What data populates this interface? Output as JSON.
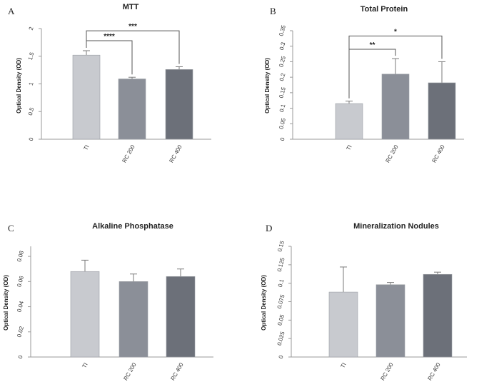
{
  "chart_data": [
    {
      "panel": "A",
      "type": "bar",
      "title": "MTT",
      "ylabel": "Optical Density (OD)",
      "xlabel": "",
      "categories": [
        "TI",
        "RC 200",
        "RC 400"
      ],
      "values": [
        1.52,
        1.09,
        1.26
      ],
      "errors": [
        0.08,
        0.03,
        0.05
      ],
      "ylim": [
        0,
        2
      ],
      "yticks": [
        0,
        0.5,
        1,
        1.5,
        2
      ],
      "ytick_labels": [
        "0",
        "0.5",
        "1",
        "1.5",
        "2"
      ],
      "colors": [
        "#c8cacf",
        "#8b8f98",
        "#6c7079"
      ],
      "significance": [
        {
          "from": 0,
          "to": 1,
          "label": "****",
          "level": 1.78
        },
        {
          "from": 0,
          "to": 2,
          "label": "***",
          "level": 1.96
        }
      ]
    },
    {
      "panel": "B",
      "type": "bar",
      "title": "Total Protein",
      "ylabel": "Optical Density (OD)",
      "xlabel": "",
      "categories": [
        "TI",
        "RC 200",
        "RC 400"
      ],
      "values": [
        0.115,
        0.21,
        0.182
      ],
      "errors": [
        0.008,
        0.05,
        0.068
      ],
      "ylim": [
        0,
        0.35
      ],
      "yticks": [
        0,
        0.05,
        0.1,
        0.15,
        0.2,
        0.25,
        0.3,
        0.35
      ],
      "ytick_labels": [
        "0",
        "0.05",
        "0.1",
        "0.15",
        "0.2",
        "0.25",
        "0.3",
        "0.35"
      ],
      "colors": [
        "#c8cacf",
        "#8b8f98",
        "#6c7079"
      ],
      "significance": [
        {
          "from": 0,
          "to": 1,
          "label": "**",
          "level": 0.29
        },
        {
          "from": 0,
          "to": 2,
          "label": "*",
          "level": 0.333
        }
      ]
    },
    {
      "panel": "C",
      "type": "bar",
      "title": "Alkaline Phosphatase",
      "ylabel": "Optical Density (OD)",
      "xlabel": "",
      "categories": [
        "TI",
        "RC 200",
        "RC 400"
      ],
      "values": [
        0.068,
        0.06,
        0.064
      ],
      "errors": [
        0.009,
        0.006,
        0.006
      ],
      "ylim": [
        0,
        0.088
      ],
      "yticks": [
        0,
        0.02,
        0.04,
        0.06,
        0.08
      ],
      "ytick_labels": [
        "0",
        "0.02",
        "0.04",
        "0.06",
        "0.08"
      ],
      "colors": [
        "#c8cacf",
        "#8b8f98",
        "#6c7079"
      ],
      "significance": []
    },
    {
      "panel": "D",
      "type": "bar",
      "title": "Mineralization Nodules",
      "ylabel": "Optical Density (OD)",
      "xlabel": "",
      "categories": [
        "TI",
        "RC 200",
        "RC 400"
      ],
      "values": [
        0.088,
        0.098,
        0.112
      ],
      "errors": [
        0.034,
        0.003,
        0.003
      ],
      "ylim": [
        0,
        0.15
      ],
      "yticks": [
        0,
        0.025,
        0.05,
        0.075,
        0.1,
        0.125,
        0.15
      ],
      "ytick_labels": [
        "0",
        "0.025",
        "0.05",
        "0.075",
        "0.1",
        "0.125",
        "0.15"
      ],
      "colors": [
        "#c8cacf",
        "#8b8f98",
        "#6c7079"
      ],
      "significance": []
    }
  ]
}
